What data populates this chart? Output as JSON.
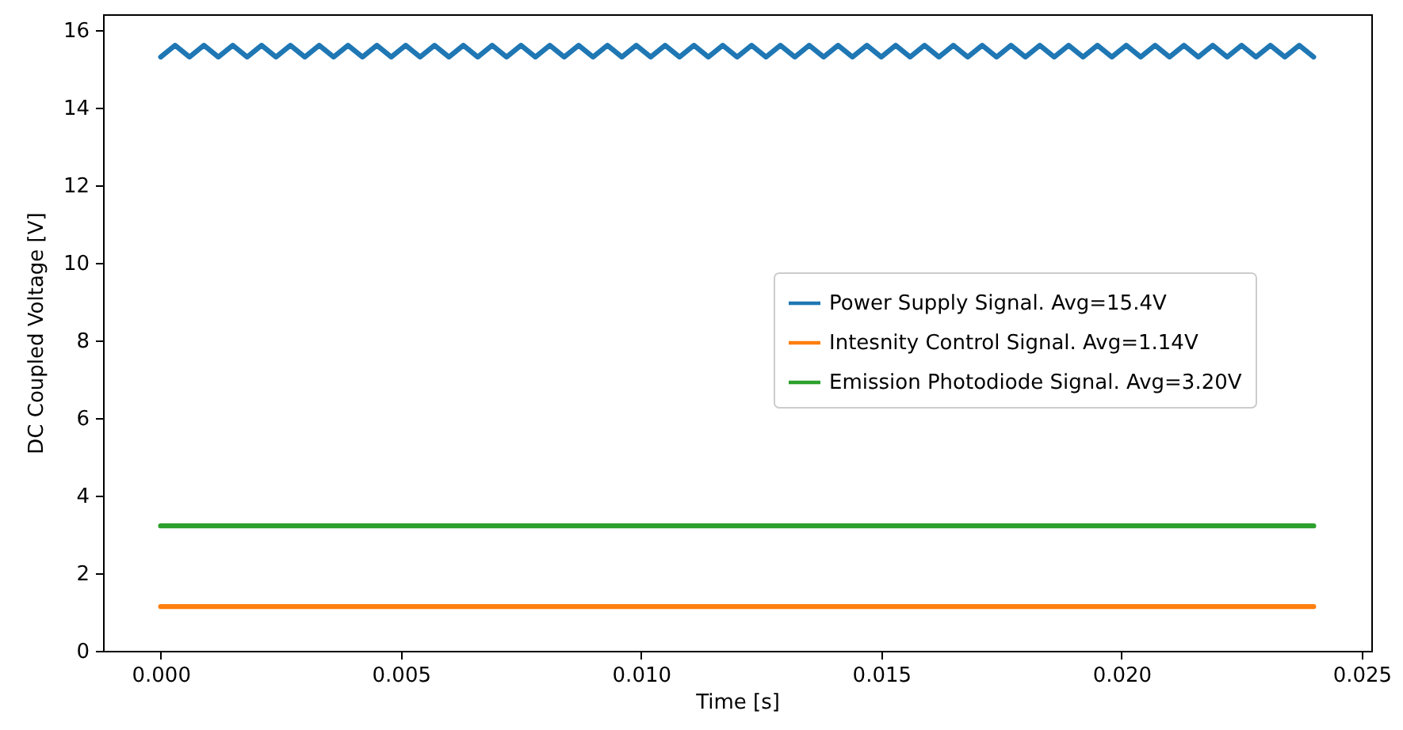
{
  "chart_data": {
    "type": "line",
    "xlabel": "Time [s]",
    "ylabel": "DC Coupled Voltage [V]",
    "xlim": [
      -0.0012,
      0.0252
    ],
    "ylim": [
      0,
      16.4
    ],
    "xticks": [
      {
        "value": 0,
        "label": "0.000"
      },
      {
        "value": 0.005,
        "label": "0.005"
      },
      {
        "value": 0.01,
        "label": "0.010"
      },
      {
        "value": 0.015,
        "label": "0.015"
      },
      {
        "value": 0.02,
        "label": "0.020"
      },
      {
        "value": 0.025,
        "label": "0.025"
      }
    ],
    "yticks": [
      0,
      2,
      4,
      6,
      8,
      10,
      12,
      14,
      16
    ],
    "grid": false,
    "legend": "right",
    "line_style": "solid",
    "series": [
      {
        "name": "Power Supply Signal. Avg=15.4V",
        "color": "#1f77b4",
        "x": [
          0,
          0.0003,
          0.0006,
          0.0009,
          0.0012,
          0.0015,
          0.0018,
          0.0021,
          0.0024,
          0.0027,
          0.003,
          0.0033,
          0.0036,
          0.0039,
          0.0042,
          0.0045,
          0.0048,
          0.0051,
          0.0054,
          0.0057,
          0.006,
          0.0063,
          0.0066,
          0.0069,
          0.0072,
          0.0075,
          0.0078,
          0.0081,
          0.0084,
          0.0087,
          0.009,
          0.0093,
          0.0096,
          0.0099,
          0.0102,
          0.0105,
          0.0108,
          0.0111,
          0.0114,
          0.0117,
          0.012,
          0.0123,
          0.0126,
          0.0129,
          0.0132,
          0.0135,
          0.0138,
          0.0141,
          0.0144,
          0.0147,
          0.015,
          0.0153,
          0.0156,
          0.0159,
          0.0162,
          0.0165,
          0.0168,
          0.0171,
          0.0174,
          0.0177,
          0.018,
          0.0183,
          0.0186,
          0.0189,
          0.0192,
          0.0195,
          0.0198,
          0.0201,
          0.0204,
          0.0207,
          0.021,
          0.0213,
          0.0216,
          0.0219,
          0.0222,
          0.0225,
          0.0228,
          0.0231,
          0.0234,
          0.0237,
          0.024
        ],
        "values": [
          15.3,
          15.6,
          15.3,
          15.6,
          15.3,
          15.6,
          15.3,
          15.6,
          15.3,
          15.6,
          15.3,
          15.6,
          15.3,
          15.6,
          15.3,
          15.6,
          15.3,
          15.6,
          15.3,
          15.6,
          15.3,
          15.6,
          15.3,
          15.6,
          15.3,
          15.6,
          15.3,
          15.6,
          15.3,
          15.6,
          15.3,
          15.6,
          15.3,
          15.6,
          15.3,
          15.6,
          15.3,
          15.6,
          15.3,
          15.6,
          15.3,
          15.6,
          15.3,
          15.6,
          15.3,
          15.6,
          15.3,
          15.6,
          15.3,
          15.6,
          15.3,
          15.6,
          15.3,
          15.6,
          15.3,
          15.6,
          15.3,
          15.6,
          15.3,
          15.6,
          15.3,
          15.6,
          15.3,
          15.6,
          15.3,
          15.6,
          15.3,
          15.6,
          15.3,
          15.6,
          15.3,
          15.6,
          15.3,
          15.6,
          15.3,
          15.6,
          15.3,
          15.6,
          15.3,
          15.6,
          15.3
        ]
      },
      {
        "name": "Intesnity Control Signal. Avg=1.14V",
        "color": "#ff7f0e",
        "x": [
          0,
          0.024
        ],
        "values": [
          1.14,
          1.14
        ]
      },
      {
        "name": "Emission Photodiode Signal. Avg=3.20V",
        "color": "#2ca02c",
        "x": [
          0,
          0.024
        ],
        "values": [
          3.22,
          3.22
        ]
      }
    ]
  }
}
